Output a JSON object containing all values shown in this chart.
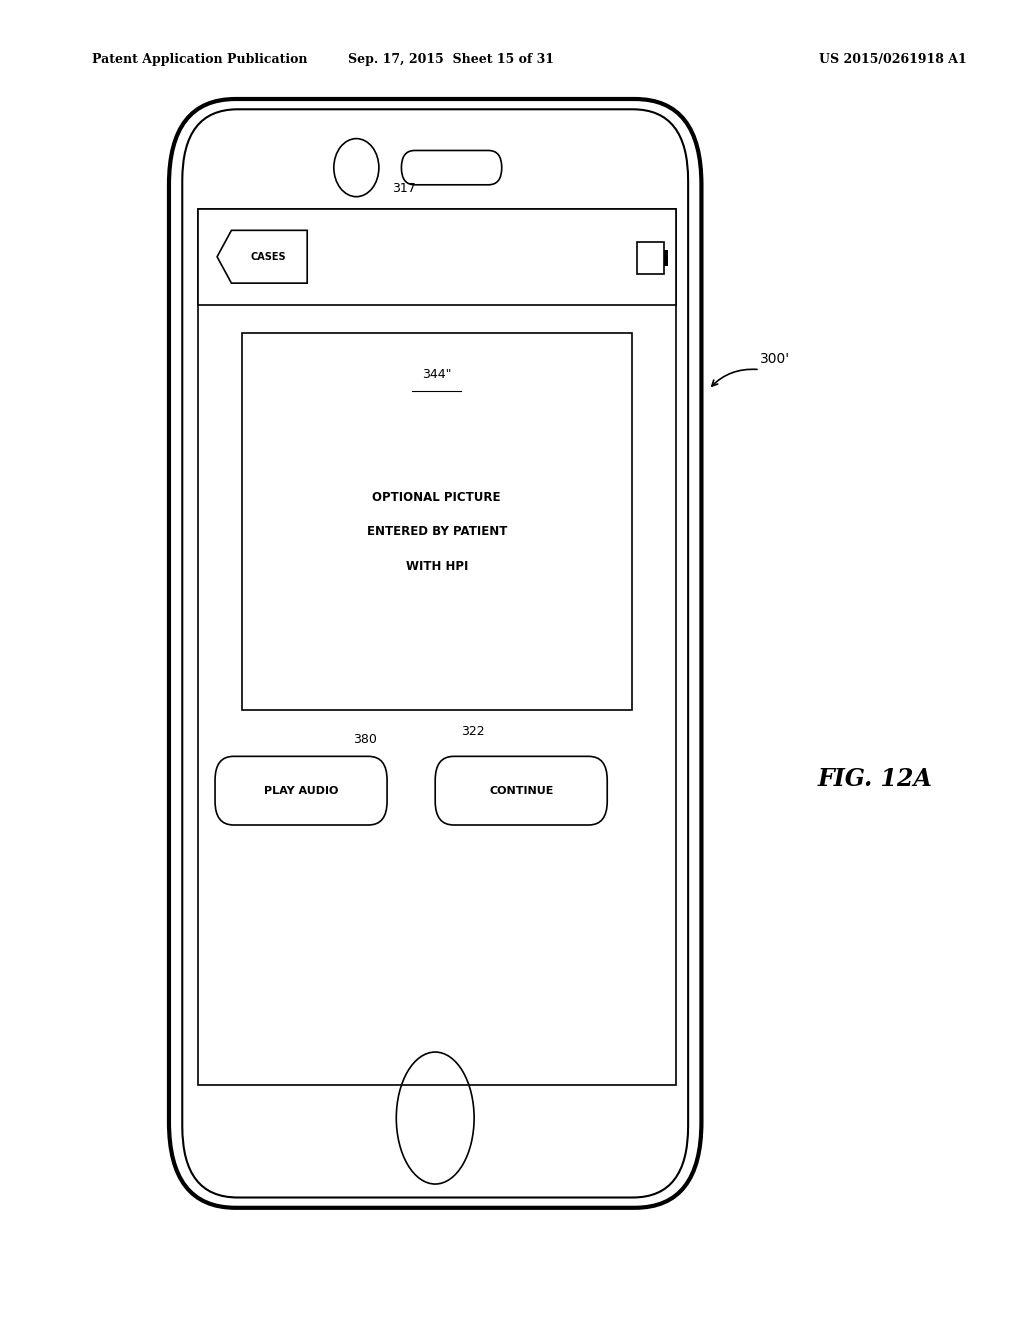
{
  "header_left": "Patent Application Publication",
  "header_mid": "Sep. 17, 2015  Sheet 15 of 31",
  "header_right": "US 2015/0261918 A1",
  "fig_label": "FIG. 12A",
  "ref_300": "300'",
  "ref_317": "317",
  "ref_344": "344\"",
  "ref_380": "380",
  "ref_322": "322",
  "cases_label": "CASES",
  "picture_text_line1": "OPTIONAL PICTURE",
  "picture_text_line2": "ENTERED BY PATIENT",
  "picture_text_line3": "WITH HPI",
  "play_audio_label": "PLAY AUDIO",
  "continue_label": "CONTINUE",
  "bg_color": "#ffffff",
  "line_color": "#000000"
}
